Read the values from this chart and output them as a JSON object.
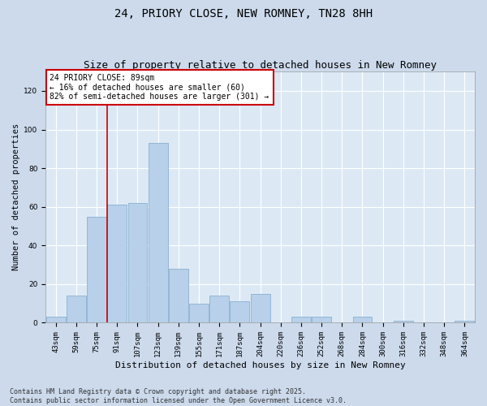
{
  "title1": "24, PRIORY CLOSE, NEW ROMNEY, TN28 8HH",
  "title2": "Size of property relative to detached houses in New Romney",
  "xlabel": "Distribution of detached houses by size in New Romney",
  "ylabel": "Number of detached properties",
  "bins": [
    "43sqm",
    "59sqm",
    "75sqm",
    "91sqm",
    "107sqm",
    "123sqm",
    "139sqm",
    "155sqm",
    "171sqm",
    "187sqm",
    "204sqm",
    "220sqm",
    "236sqm",
    "252sqm",
    "268sqm",
    "284sqm",
    "300sqm",
    "316sqm",
    "332sqm",
    "348sqm",
    "364sqm"
  ],
  "values": [
    3,
    14,
    55,
    61,
    62,
    93,
    28,
    10,
    14,
    11,
    15,
    0,
    3,
    3,
    0,
    3,
    0,
    1,
    0,
    0,
    1
  ],
  "bar_color": "#b8d0ea",
  "bar_edge_color": "#8ab0d0",
  "vline_color": "#cc0000",
  "vline_x": 2.5,
  "annotation_text": "24 PRIORY CLOSE: 89sqm\n← 16% of detached houses are smaller (60)\n82% of semi-detached houses are larger (301) →",
  "annotation_box_color": "#ffffff",
  "annotation_box_edge_color": "#cc0000",
  "ylim": [
    0,
    130
  ],
  "yticks": [
    0,
    20,
    40,
    60,
    80,
    100,
    120
  ],
  "footer_text": "Contains HM Land Registry data © Crown copyright and database right 2025.\nContains public sector information licensed under the Open Government Licence v3.0.",
  "background_color": "#ccdaec",
  "plot_bg_color": "#dce9f5",
  "title1_fontsize": 10,
  "title2_fontsize": 9,
  "xlabel_fontsize": 8,
  "ylabel_fontsize": 7.5,
  "tick_fontsize": 6.5,
  "annot_fontsize": 7,
  "footer_fontsize": 6
}
